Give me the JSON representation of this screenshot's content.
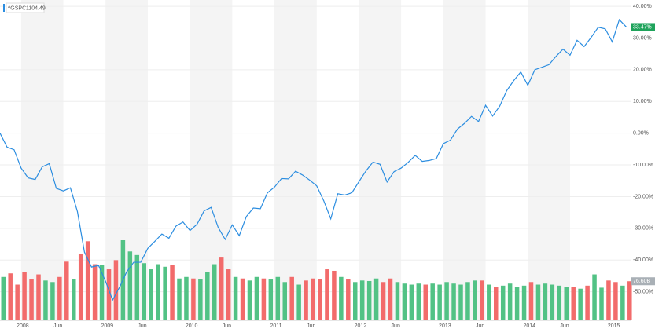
{
  "chart_data": {
    "type": "line",
    "symbol": "^GSPC",
    "symbol_price": "1104.49",
    "categories": [
      null,
      null,
      null,
      "2008",
      null,
      null,
      null,
      null,
      "Jun",
      null,
      null,
      null,
      null,
      null,
      null,
      "2009",
      null,
      null,
      null,
      null,
      "Jun",
      null,
      null,
      null,
      null,
      null,
      null,
      "2010",
      null,
      null,
      null,
      null,
      "Jun",
      null,
      null,
      null,
      null,
      null,
      null,
      "2011",
      null,
      null,
      null,
      null,
      "Jun",
      null,
      null,
      null,
      null,
      null,
      null,
      "2012",
      null,
      null,
      null,
      null,
      "Jun",
      null,
      null,
      null,
      null,
      null,
      null,
      "2013",
      null,
      null,
      null,
      null,
      "Jun",
      null,
      null,
      null,
      null,
      null,
      null,
      "2014",
      null,
      null,
      null,
      null,
      "Jun",
      null,
      null,
      null,
      null,
      null,
      null,
      "2015",
      null,
      null
    ],
    "series": [
      {
        "name": "^GSPC",
        "color": "#2b8de0",
        "values": [
          0,
          -4.4,
          -5.2,
          -11.0,
          -14.1,
          -14.6,
          -10.6,
          -9.6,
          -17.4,
          -18.2,
          -17.2,
          -24.7,
          -37.5,
          -42.2,
          -41.7,
          -46.7,
          -52.6,
          -48.5,
          -43.7,
          -40.7,
          -40.7,
          -36.3,
          -34.1,
          -31.8,
          -33.1,
          -29.3,
          -28.0,
          -30.7,
          -28.7,
          -24.5,
          -23.4,
          -29.7,
          -33.5,
          -28.9,
          -32.3,
          -26.3,
          -23.6,
          -23.8,
          -18.8,
          -17.0,
          -14.3,
          -14.4,
          -12.0,
          -13.2,
          -14.8,
          -16.6,
          -21.3,
          -27.0,
          -19.1,
          -19.5,
          -18.8,
          -15.3,
          -11.9,
          -9.1,
          -9.8,
          -15.4,
          -12.1,
          -11.0,
          -9.2,
          -7.0,
          -8.9,
          -8.6,
          -8.0,
          -3.3,
          -2.2,
          1.3,
          3.1,
          5.3,
          3.7,
          8.8,
          5.4,
          8.5,
          13.4,
          16.6,
          19.3,
          15.1,
          20.0,
          20.8,
          21.6,
          24.2,
          26.5,
          24.6,
          29.3,
          27.3,
          30.2,
          33.4,
          32.9,
          28.8,
          35.8,
          33.47
        ],
        "value_labels": [
          null,
          null,
          null,
          null,
          null,
          null,
          null,
          null,
          null,
          null,
          null,
          null,
          null,
          null,
          null,
          null,
          null,
          null,
          null,
          null,
          null,
          null,
          null,
          null,
          null,
          null,
          null,
          null,
          null,
          null,
          null,
          null,
          null,
          null,
          null,
          null,
          null,
          null,
          null,
          null,
          null,
          null,
          null,
          null,
          null,
          null,
          null,
          null,
          null,
          null,
          null,
          null,
          null,
          null,
          null,
          null,
          null,
          null,
          null,
          null,
          null,
          null,
          null,
          null,
          null,
          null,
          null,
          null,
          null,
          null,
          null,
          null,
          null,
          null,
          null,
          null,
          null,
          null,
          null,
          null,
          null,
          null,
          null,
          null,
          null,
          null,
          null,
          null,
          null,
          "33.47%"
        ]
      }
    ],
    "volume": {
      "values": [
        85,
        92,
        70,
        95,
        80,
        90,
        78,
        75,
        85,
        115,
        80,
        130,
        155,
        110,
        108,
        100,
        118,
        157,
        135,
        128,
        112,
        100,
        110,
        105,
        108,
        82,
        85,
        82,
        80,
        95,
        110,
        123,
        100,
        85,
        82,
        78,
        85,
        82,
        80,
        85,
        75,
        85,
        70,
        78,
        82,
        80,
        100,
        97,
        85,
        80,
        75,
        78,
        77,
        82,
        75,
        82,
        75,
        72,
        70,
        72,
        70,
        72,
        70,
        75,
        72,
        70,
        75,
        78,
        78,
        70,
        65,
        68,
        72,
        65,
        68,
        75,
        70,
        72,
        70,
        68,
        65,
        66,
        62,
        68,
        90,
        64,
        78,
        75,
        68,
        76.6
      ],
      "value_labels": [
        null,
        null,
        null,
        null,
        null,
        null,
        null,
        null,
        null,
        null,
        null,
        null,
        null,
        null,
        null,
        null,
        null,
        null,
        null,
        null,
        null,
        null,
        null,
        null,
        null,
        null,
        null,
        null,
        null,
        null,
        null,
        null,
        null,
        null,
        null,
        null,
        null,
        null,
        null,
        null,
        null,
        null,
        null,
        null,
        null,
        null,
        null,
        null,
        null,
        null,
        null,
        null,
        null,
        null,
        null,
        null,
        null,
        null,
        null,
        null,
        null,
        null,
        null,
        null,
        null,
        null,
        null,
        null,
        null,
        null,
        null,
        null,
        null,
        null,
        null,
        null,
        null,
        null,
        null,
        null,
        null,
        null,
        null,
        null,
        null,
        null,
        null,
        null,
        null,
        "76.60B"
      ],
      "colors": [
        "g",
        "r",
        "r",
        "r",
        "r",
        "r",
        "g",
        "g",
        "r",
        "r",
        "g",
        "r",
        "r",
        "r",
        "g",
        "r",
        "r",
        "g",
        "g",
        "g",
        "g",
        "g",
        "g",
        "g",
        "r",
        "g",
        "g",
        "r",
        "g",
        "g",
        "g",
        "r",
        "r",
        "g",
        "r",
        "g",
        "g",
        "r",
        "g",
        "g",
        "g",
        "r",
        "g",
        "r",
        "r",
        "r",
        "r",
        "r",
        "g",
        "r",
        "g",
        "g",
        "g",
        "g",
        "r",
        "r",
        "g",
        "g",
        "g",
        "g",
        "r",
        "g",
        "g",
        "g",
        "g",
        "g",
        "g",
        "g",
        "r",
        "g",
        "r",
        "g",
        "g",
        "g",
        "g",
        "r",
        "g",
        "g",
        "g",
        "g",
        "g",
        "r",
        "g",
        "r",
        "g",
        "g",
        "r",
        "r",
        "g",
        "r"
      ],
      "up_color": "#52c285",
      "down_color": "#f26b6b"
    },
    "ylim": [
      -59,
      42
    ],
    "yticks": [
      {
        "value": 40,
        "label": "40.00%"
      },
      {
        "value": 30,
        "label": "30.00%"
      },
      {
        "value": 20,
        "label": "20.00%"
      },
      {
        "value": 10,
        "label": "10.00%"
      },
      {
        "value": 0,
        "label": "0.00%"
      },
      {
        "value": -10,
        "label": "-10.00%"
      },
      {
        "value": -20,
        "label": "-20.00%"
      },
      {
        "value": -30,
        "label": "-30.00%"
      },
      {
        "value": -40,
        "label": "-40.00%"
      },
      {
        "value": -50,
        "label": "-50.00%"
      }
    ],
    "grid": true
  }
}
